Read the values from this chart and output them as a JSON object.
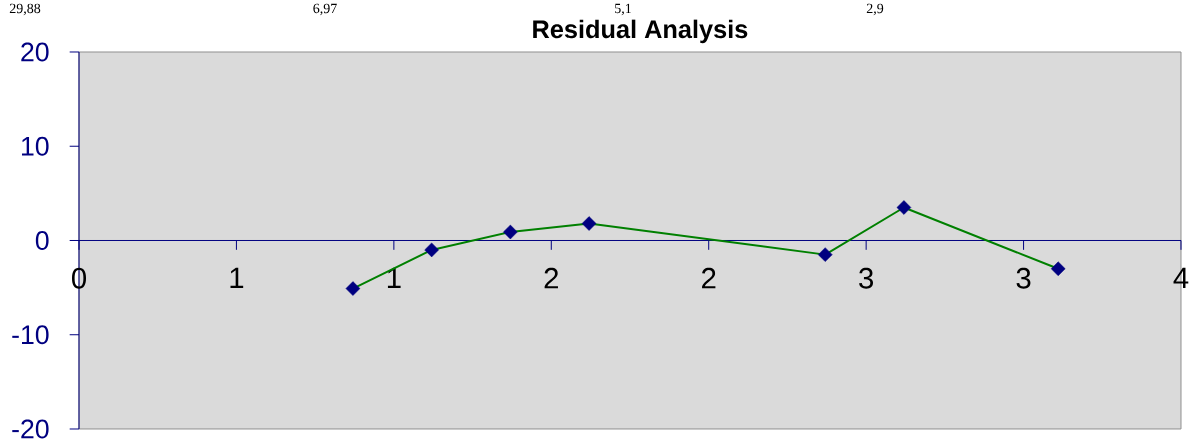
{
  "chart_data": {
    "type": "line",
    "title": "Residual Analysis",
    "x": [
      0.87,
      1.12,
      1.37,
      1.62,
      2.37,
      2.62,
      3.11
    ],
    "values": [
      -5.1,
      -1.0,
      0.9,
      1.8,
      -1.5,
      3.5,
      -3.0
    ],
    "color": "#008000",
    "colors": [
      "#000080",
      "#000080",
      "#000080",
      "#000080",
      "#000080",
      "#000080",
      "#000080"
    ],
    "marker": "diamond",
    "line_style": "solid",
    "xlim": [
      0,
      3.5
    ],
    "xticks": [
      0,
      {
        "value": 0.5,
        "label": "1"
      },
      1,
      {
        "value": 1.5,
        "label": "2"
      },
      2,
      {
        "value": 2.5,
        "label": "3"
      },
      3,
      {
        "value": 3.5,
        "label": "4"
      }
    ],
    "ylim": [
      -20,
      20
    ],
    "yticks": [
      -20,
      -10,
      0,
      10,
      20
    ],
    "annotations": [
      "29,88",
      "6,97",
      "5,1",
      "2,9"
    ]
  }
}
